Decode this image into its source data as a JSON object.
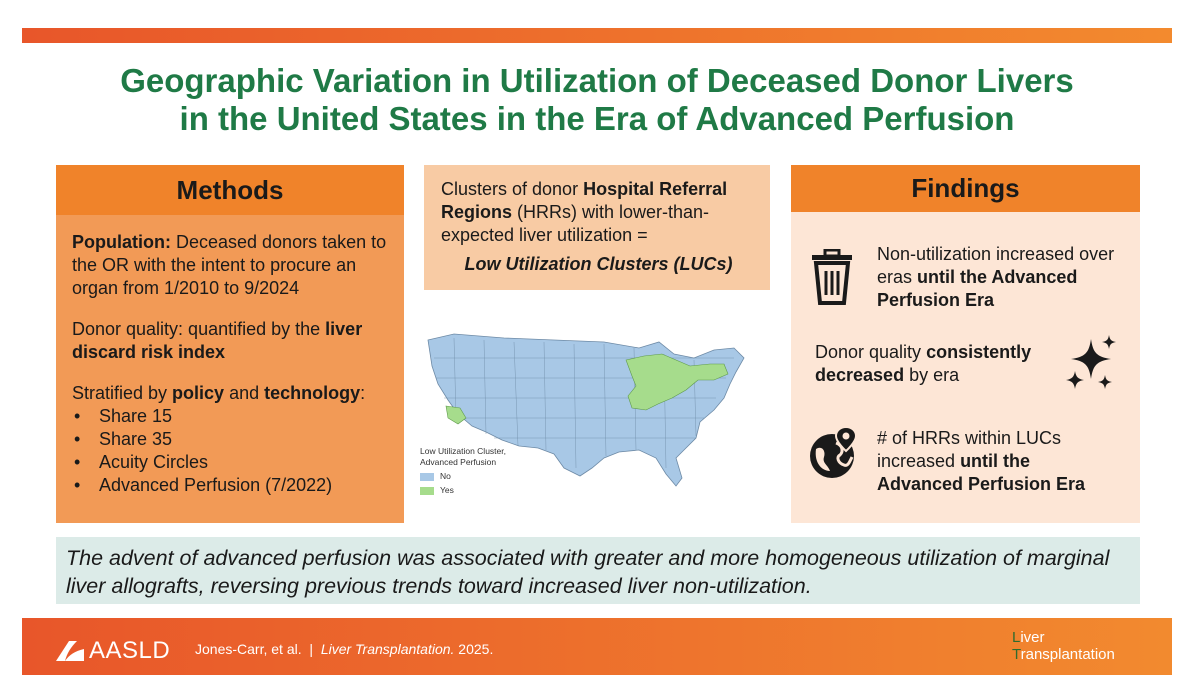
{
  "title": {
    "line1": "Geographic Variation in Utilization of Deceased Donor Livers",
    "line2": "in the United States in the Era of Advanced Perfusion"
  },
  "methods": {
    "heading": "Methods",
    "population_label": "Population:",
    "population_text": " Deceased donors taken to the OR with the intent to procure an organ from 1/2010 to 9/2024",
    "quality_text": "Donor quality: quantified by the ",
    "quality_bold": "liver discard risk index",
    "stratified_prefix": "Stratified by ",
    "stratified_policy": "policy",
    "stratified_and": " and ",
    "stratified_technology": "technology",
    "stratified_colon": ":",
    "items": [
      "Share 15",
      "Share 35",
      "Acuity Circles",
      "Advanced Perfusion (7/2022)"
    ]
  },
  "definition": {
    "prefix": "Clusters of donor ",
    "bold": "Hospital Referral Regions",
    "suffix": " (HRRs) with lower-than-expected liver utilization =",
    "luc": "Low Utilization Clusters (LUCs)"
  },
  "map_legend": {
    "title_line1": "Low Utilization Cluster,",
    "title_line2": "Advanced Perfusion",
    "no": "No",
    "yes": "Yes",
    "no_color": "#a8c8e6",
    "yes_color": "#a6dc8c"
  },
  "findings": {
    "heading": "Findings",
    "f1_text": "Non-utilization increased over eras ",
    "f1_bold": "until the Advanced Perfusion Era",
    "f2_text": "Donor quality ",
    "f2_bold": "consistently decreased",
    "f2_suffix": " by era",
    "f3_text": "# of HRRs within LUCs increased ",
    "f3_bold": "until the Advanced Perfusion Era",
    "icons": [
      "trash-icon",
      "sparkles-icon",
      "globe-pin-icon"
    ]
  },
  "conclusion": "The advent of advanced perfusion was associated with greater and more homogeneous utilization of marginal liver allografts, reversing previous trends toward increased liver non-utilization.",
  "footer": {
    "aasld": "AASLD",
    "authors": "Jones-Carr, et al.",
    "separator": "|",
    "journal": "Liver Transplantation.",
    "year": "2025.",
    "lt_line1_first": "L",
    "lt_line1_rest": "iver",
    "lt_line2_first": "T",
    "lt_line2_rest": "ransplantation"
  },
  "colors": {
    "title_green": "#1f7a46",
    "orange": "#f0832a",
    "methods_bg": "#f29a56",
    "findings_bg": "#fde6d6",
    "conclusion_bg": "#dcebe8"
  }
}
